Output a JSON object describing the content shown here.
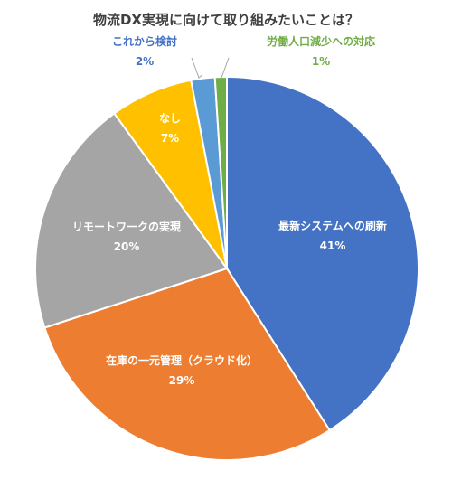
{
  "chart_data": {
    "type": "pie",
    "title": "物流DX実現に向けて取り組みたいことは？",
    "slices": [
      {
        "label": "最新システムへの刷新",
        "value": 41,
        "value_label": "41%",
        "color": "#4472C4"
      },
      {
        "label": "在庫の一元管理（クラウド化）",
        "value": 29,
        "value_label": "29%",
        "color": "#ED7D31"
      },
      {
        "label": "リモートワークの実現",
        "value": 20,
        "value_label": "20%",
        "color": "#A5A5A5"
      },
      {
        "label": "なし",
        "value": 7,
        "value_label": "7%",
        "color": "#FFC000"
      },
      {
        "label": "これから検討",
        "value": 2,
        "value_label": "2%",
        "color": "#5B9BD5"
      },
      {
        "label": "労働人口減少への対応",
        "value": 1,
        "value_label": "1%",
        "color": "#70AD47"
      }
    ],
    "start_angle_deg": 0,
    "direction": "clockwise",
    "legend": "none"
  }
}
